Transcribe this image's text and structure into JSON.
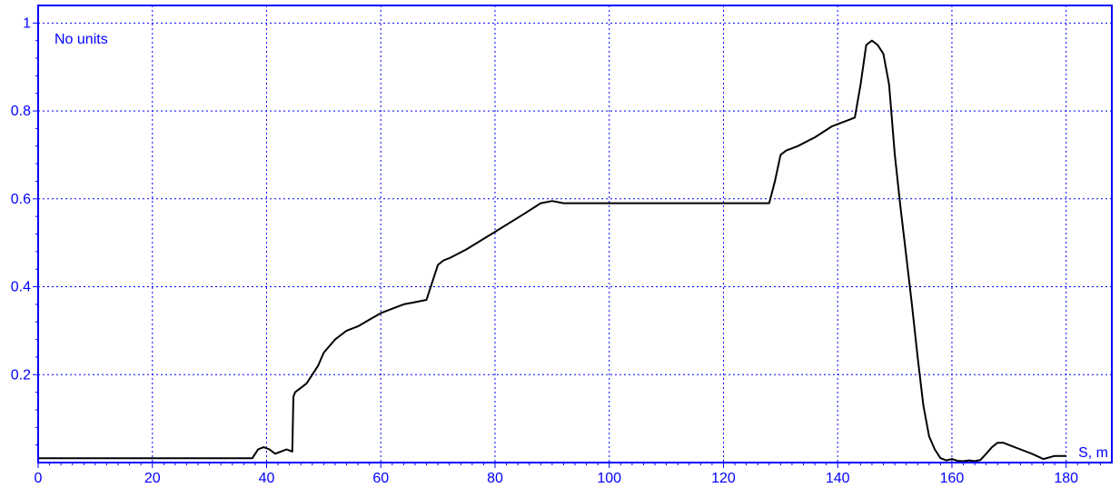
{
  "chart_data": {
    "type": "line",
    "title": "",
    "xlabel": "S, m",
    "ylabel": "No units",
    "xlim": [
      0,
      188
    ],
    "ylim": [
      0,
      1.04
    ],
    "x_ticks": [
      0,
      20,
      40,
      60,
      80,
      100,
      120,
      140,
      160,
      180
    ],
    "x_tick_labels": [
      "0",
      "20",
      "40",
      "60",
      "80",
      "100",
      "120",
      "140",
      "160",
      "180"
    ],
    "y_ticks": [
      0.2,
      0.4,
      0.6,
      0.8,
      1
    ],
    "y_tick_labels": [
      "0.2",
      "0.4",
      "0.6",
      "0.8",
      "1"
    ],
    "grid": true,
    "colors": {
      "axis": "#0000ff",
      "grid": "#0000ff",
      "line": "#000000",
      "labels": "#0000ff"
    },
    "series": [
      {
        "x": [
          0,
          37.5,
          38.5,
          39.5,
          40.5,
          41.5,
          42.5,
          43.5,
          44.5,
          44.7,
          45,
          46,
          47,
          48,
          49,
          50,
          52,
          54,
          56,
          58,
          60,
          62,
          64,
          66,
          68,
          69,
          70,
          71,
          72,
          75,
          80,
          85,
          88,
          90,
          92,
          94,
          100,
          110,
          120,
          126,
          128,
          129,
          130,
          131,
          133,
          136,
          139,
          142,
          143,
          144,
          145,
          146,
          147,
          148,
          149,
          150,
          151,
          152,
          153,
          154,
          155,
          156,
          157,
          158,
          159,
          160,
          161,
          162,
          163,
          164,
          165,
          166,
          167,
          168,
          169,
          170,
          172,
          174,
          176,
          178,
          180
        ],
        "y": [
          0.01,
          0.01,
          0.03,
          0.035,
          0.03,
          0.02,
          0.025,
          0.03,
          0.025,
          0.15,
          0.16,
          0.17,
          0.18,
          0.2,
          0.22,
          0.25,
          0.28,
          0.3,
          0.31,
          0.325,
          0.34,
          0.35,
          0.36,
          0.365,
          0.37,
          0.41,
          0.45,
          0.46,
          0.465,
          0.485,
          0.525,
          0.565,
          0.59,
          0.595,
          0.59,
          0.59,
          0.59,
          0.59,
          0.59,
          0.59,
          0.59,
          0.64,
          0.7,
          0.71,
          0.72,
          0.74,
          0.765,
          0.78,
          0.785,
          0.86,
          0.95,
          0.96,
          0.95,
          0.93,
          0.86,
          0.7,
          0.58,
          0.47,
          0.36,
          0.24,
          0.13,
          0.06,
          0.03,
          0.01,
          0.005,
          0.008,
          0.004,
          0.003,
          0.005,
          0.003,
          0.006,
          0.02,
          0.035,
          0.045,
          0.045,
          0.04,
          0.03,
          0.02,
          0.008,
          0.015,
          0.015
        ]
      }
    ]
  }
}
